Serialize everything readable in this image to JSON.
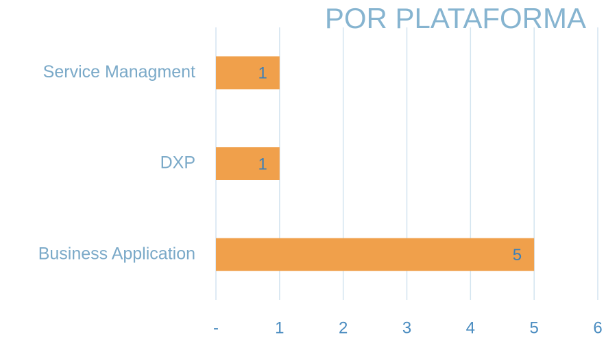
{
  "chart_data": {
    "type": "hbar",
    "title": "POR PLATAFORMA",
    "categories": [
      "Service Managment",
      "DXP",
      "Business Application"
    ],
    "values": [
      1,
      1,
      5
    ],
    "color": "#f0a04b",
    "xlim": [
      0,
      6
    ],
    "xticks": [
      {
        "value": 0,
        "label": "-"
      },
      1,
      2,
      3,
      4,
      5,
      6
    ],
    "grid": true
  }
}
